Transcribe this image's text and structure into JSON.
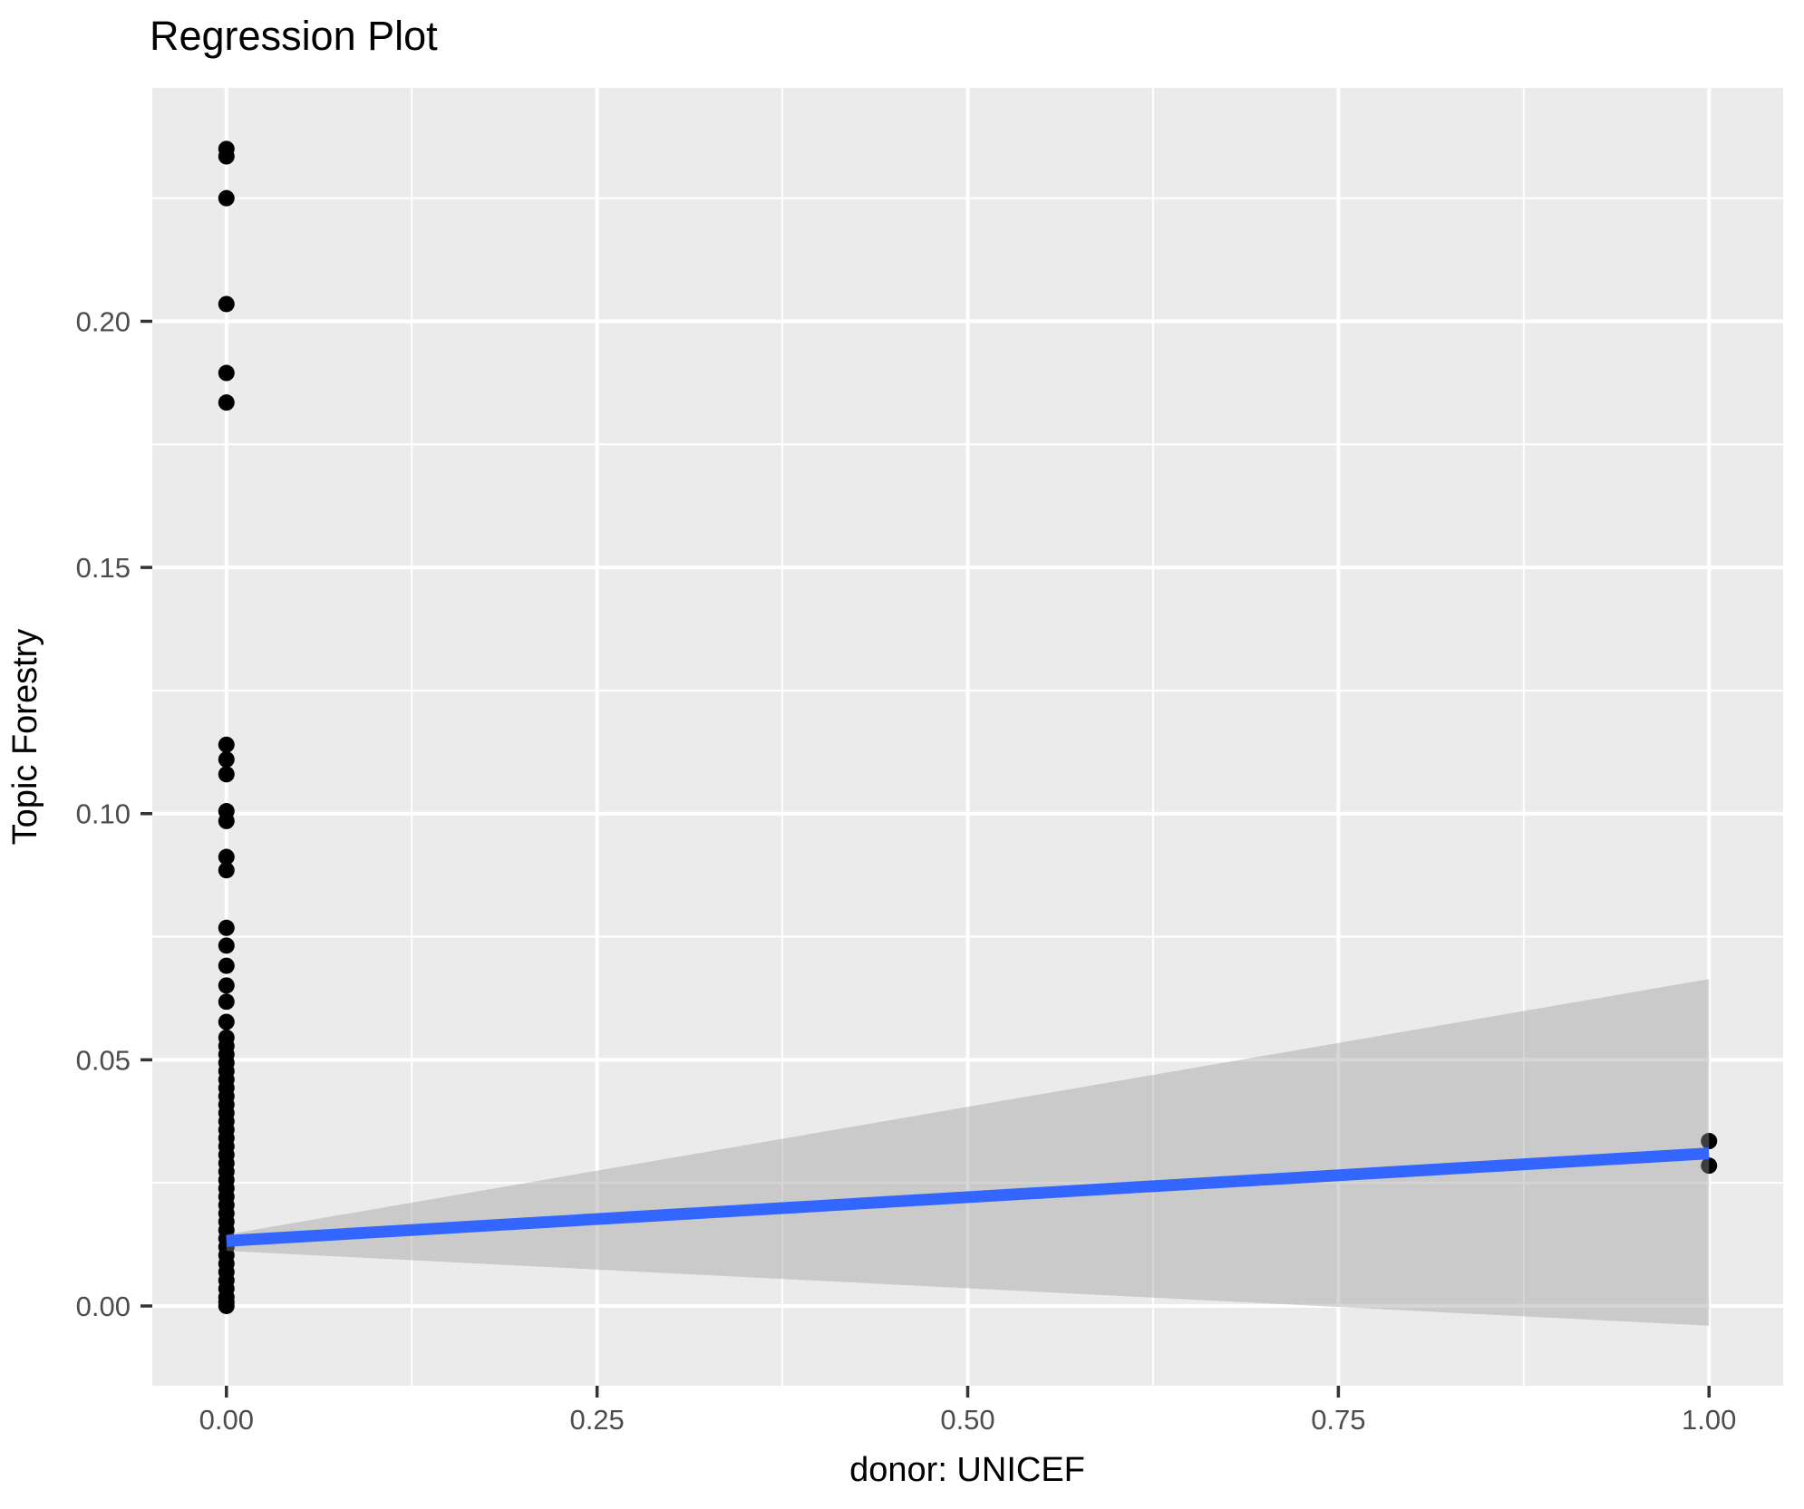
{
  "chart_data": {
    "type": "scatter",
    "title": "Regression Plot",
    "xlabel": "donor: UNICEF",
    "ylabel": "Topic Forestry",
    "xlim": [
      -0.05,
      1.05
    ],
    "ylim": [
      -0.0162,
      0.2474
    ],
    "grid": true,
    "legend_position": "none",
    "x_ticks": {
      "values": [
        0,
        0.25,
        0.5,
        0.75,
        1.0
      ],
      "labels": [
        "0.00",
        "0.25",
        "0.50",
        "0.75",
        "1.00"
      ]
    },
    "y_ticks": {
      "values": [
        0,
        0.05,
        0.1,
        0.15,
        0.2
      ],
      "labels": [
        "0.00",
        "0.05",
        "0.10",
        "0.15",
        "0.20"
      ]
    },
    "x_minor_gridlines": [
      0.125,
      0.375,
      0.625,
      0.875
    ],
    "y_minor_gridlines": [
      0.025,
      0.075,
      0.125,
      0.175,
      0.225
    ],
    "series": [
      {
        "name": "observations at x=0",
        "x_value": 0,
        "y_values": [
          0.235,
          0.2335,
          0.225,
          0.2035,
          0.1895,
          0.1835,
          0.114,
          0.111,
          0.108,
          0.1005,
          0.0985,
          0.0912,
          0.0885,
          0.0768,
          0.0732,
          0.0691,
          0.0651,
          0.0618,
          0.0577,
          0.0545,
          0.0528,
          0.0511,
          0.0494,
          0.0477,
          0.046,
          0.0443,
          0.0426,
          0.0409,
          0.0392,
          0.0375,
          0.0358,
          0.0341,
          0.0324,
          0.0307,
          0.029,
          0.0273,
          0.0256,
          0.0239,
          0.0222,
          0.0205,
          0.0188,
          0.0171,
          0.0154,
          0.0137,
          0.012,
          0.0103,
          0.0086,
          0.0069,
          0.0052,
          0.0035,
          0.0018,
          0.0008,
          0.0
        ]
      },
      {
        "name": "observations at x=1",
        "x_value": 1,
        "y_values": [
          0.0335,
          0.0285
        ]
      }
    ],
    "regression_line": {
      "x": [
        0,
        1
      ],
      "y": [
        0.0132,
        0.031
      ],
      "color": "#3366FF"
    },
    "confidence_band": {
      "x": [
        0,
        1
      ],
      "upper": [
        0.0145,
        0.0664
      ],
      "lower": [
        0.0112,
        -0.004
      ],
      "fill": "#999999",
      "opacity": 0.4
    },
    "colors": {
      "panel_background": "#EBEBEB",
      "gridline": "#FFFFFF",
      "point": "#000000",
      "tick_label": "#4D4D4D",
      "tick_mark": "#333333",
      "title": "#000000"
    }
  }
}
